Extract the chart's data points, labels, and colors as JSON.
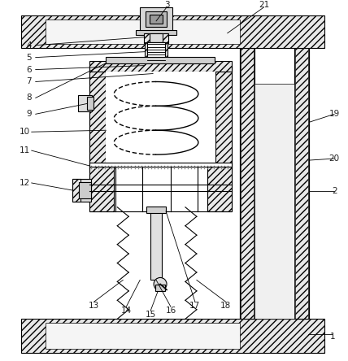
{
  "bg_color": "#ffffff",
  "lc": "#000000",
  "lw": 0.8,
  "label_fs": 7.5,
  "hatch_fc": "#e8e8e8",
  "gray1": "#cccccc",
  "gray2": "#dddddd",
  "gray3": "#aaaaaa"
}
